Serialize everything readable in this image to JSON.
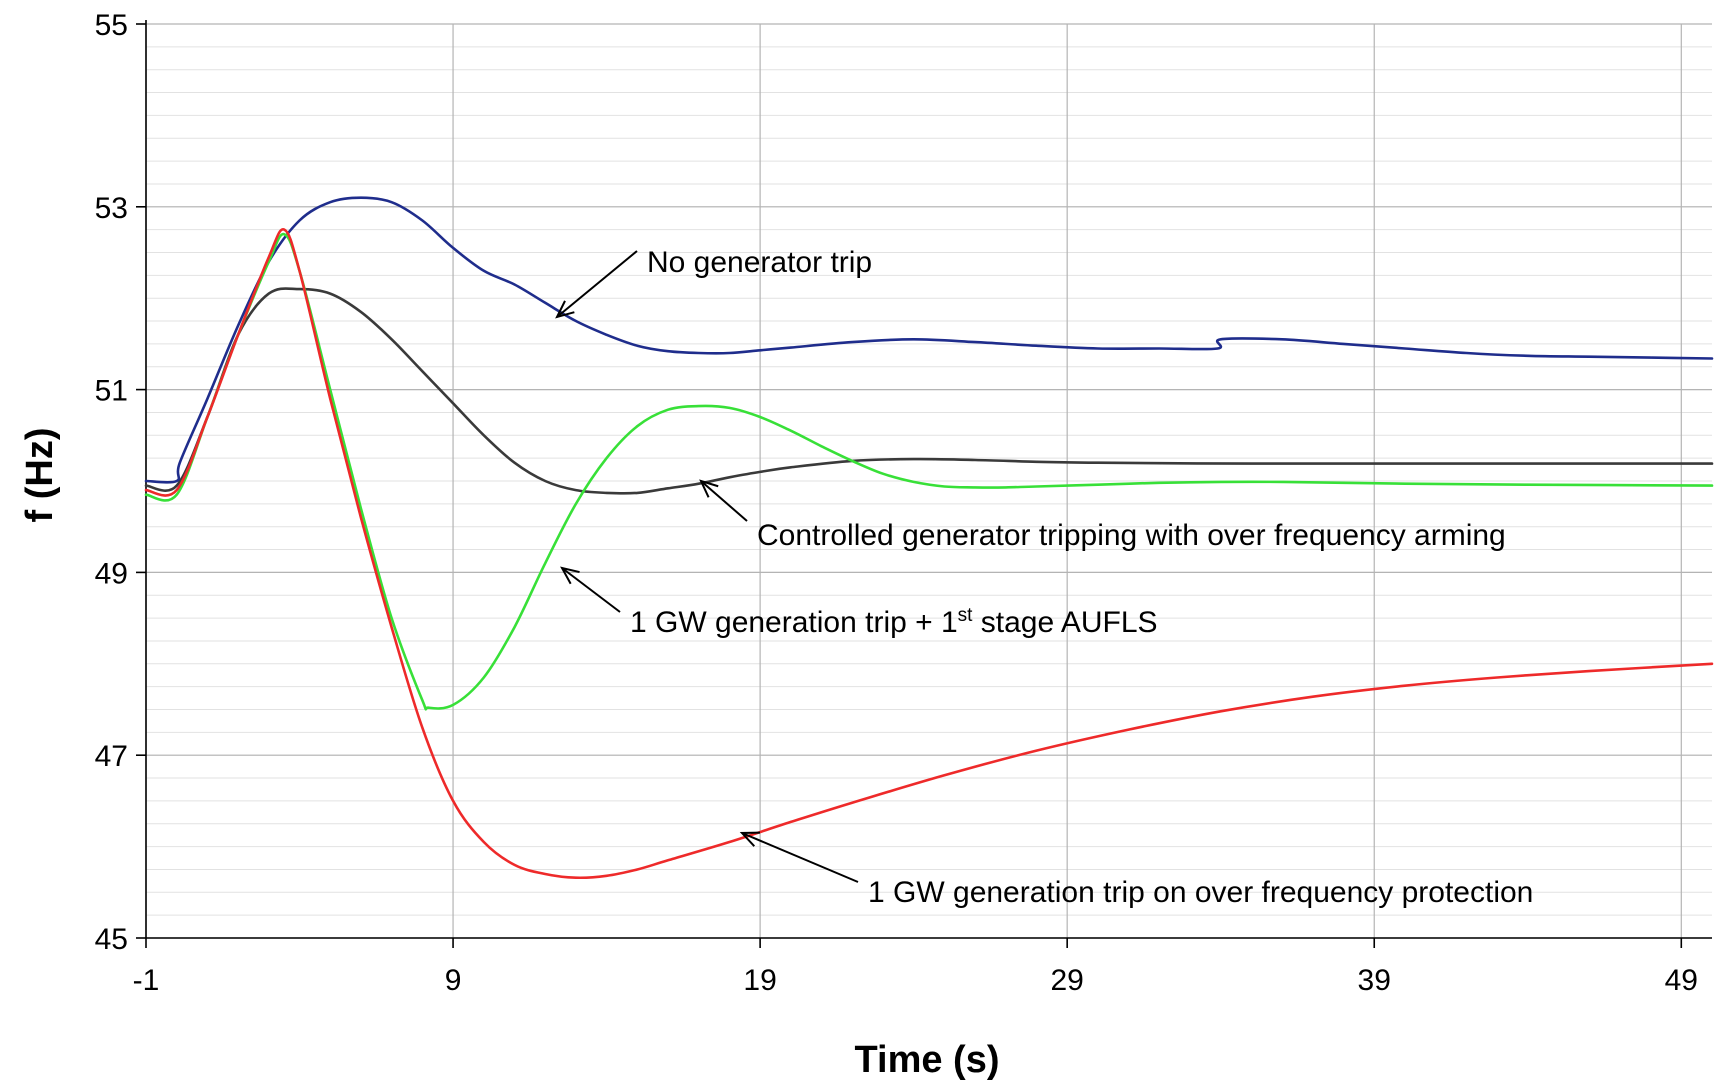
{
  "chart_data": {
    "type": "line",
    "title": "",
    "xlabel": "Time (s)",
    "ylabel": "f (Hz)",
    "xlim": [
      -1,
      50
    ],
    "ylim": [
      45,
      55
    ],
    "x_ticks": [
      -1,
      9,
      19,
      29,
      39,
      49
    ],
    "y_ticks": [
      45,
      47,
      49,
      51,
      53,
      55
    ],
    "grid": true,
    "series": [
      {
        "key": "no_trip",
        "color": "#1f2d8c",
        "x": [
          -1,
          0,
          0.1,
          1,
          2,
          3,
          4,
          5,
          6,
          7,
          8,
          9,
          10,
          11,
          12,
          13,
          14,
          15,
          16,
          17,
          18,
          19,
          20,
          22,
          24,
          26,
          28,
          30,
          32,
          33.9,
          34,
          36,
          38,
          40,
          42,
          44,
          46,
          48,
          50
        ],
        "y": [
          50.0,
          50.0,
          50.2,
          50.9,
          51.7,
          52.4,
          52.85,
          53.05,
          53.1,
          53.05,
          52.85,
          52.55,
          52.3,
          52.15,
          51.95,
          51.75,
          51.6,
          51.48,
          51.42,
          51.4,
          51.4,
          51.43,
          51.46,
          51.52,
          51.55,
          51.52,
          51.48,
          51.45,
          51.45,
          51.45,
          51.55,
          51.55,
          51.5,
          51.45,
          51.4,
          51.37,
          51.36,
          51.35,
          51.34
        ]
      },
      {
        "key": "controlled",
        "color": "#3a3a3a",
        "x": [
          -1,
          0,
          1,
          2,
          3,
          4,
          5,
          6,
          7,
          8,
          9,
          10,
          11,
          12,
          13,
          14,
          15,
          16,
          17,
          18,
          19,
          20,
          22,
          24,
          26,
          28,
          30,
          35,
          40,
          45,
          50
        ],
        "y": [
          49.95,
          49.95,
          50.7,
          51.6,
          52.05,
          52.1,
          52.05,
          51.85,
          51.55,
          51.2,
          50.85,
          50.5,
          50.2,
          50.0,
          49.9,
          49.87,
          49.87,
          49.92,
          49.97,
          50.04,
          50.1,
          50.15,
          50.22,
          50.24,
          50.23,
          50.21,
          50.2,
          50.19,
          50.19,
          50.19,
          50.19
        ]
      },
      {
        "key": "aufls",
        "color": "#38e038",
        "x": [
          -1,
          0,
          1,
          2,
          3,
          3.5,
          4,
          5,
          6,
          7,
          8,
          8.2,
          9,
          10,
          11,
          12,
          13,
          14,
          15,
          16,
          17,
          18,
          19,
          20,
          21,
          22,
          23,
          24,
          25,
          26,
          27,
          28,
          30,
          32,
          34,
          36,
          38,
          40,
          44,
          50
        ],
        "y": [
          49.85,
          49.85,
          50.7,
          51.6,
          52.4,
          52.7,
          52.3,
          51.0,
          49.7,
          48.5,
          47.6,
          47.52,
          47.55,
          47.85,
          48.4,
          49.1,
          49.75,
          50.25,
          50.6,
          50.78,
          50.82,
          50.8,
          50.7,
          50.55,
          50.38,
          50.22,
          50.08,
          49.99,
          49.94,
          49.93,
          49.93,
          49.94,
          49.96,
          49.98,
          49.99,
          49.99,
          49.98,
          49.97,
          49.96,
          49.95
        ]
      },
      {
        "key": "ofp",
        "color": "#ee2a2a",
        "x": [
          -1,
          0,
          1,
          2,
          3,
          3.5,
          4,
          5,
          6,
          7,
          8,
          9,
          10,
          11,
          12,
          13,
          14,
          15,
          16,
          18,
          20,
          22,
          25,
          28,
          31,
          34,
          37,
          40,
          43,
          46,
          50
        ],
        "y": [
          49.9,
          49.9,
          50.7,
          51.6,
          52.45,
          52.75,
          52.3,
          50.9,
          49.6,
          48.4,
          47.3,
          46.5,
          46.05,
          45.8,
          45.7,
          45.66,
          45.68,
          45.75,
          45.85,
          46.05,
          46.27,
          46.48,
          46.78,
          47.05,
          47.28,
          47.48,
          47.64,
          47.76,
          47.85,
          47.92,
          48.0
        ]
      }
    ],
    "annotations": [
      {
        "key": "no_trip",
        "text": "No generator trip"
      },
      {
        "key": "controlled",
        "text": "Controlled generator tripping with over frequency arming"
      },
      {
        "key": "aufls",
        "text": "1 GW generation trip + 1",
        "superscript": "st",
        "text_after": " stage AUFLS"
      },
      {
        "key": "ofp",
        "text": "1 GW generation trip on over frequency protection"
      }
    ]
  }
}
